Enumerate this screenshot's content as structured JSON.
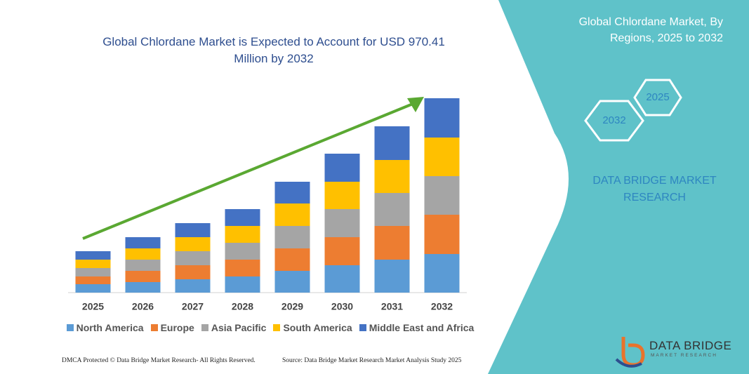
{
  "chart_data": {
    "type": "stacked-bar",
    "title": "Global Chlordane Market is Expected to Account for USD 970.41 Million by 2032",
    "categories": [
      "2025",
      "2026",
      "2027",
      "2028",
      "2029",
      "2030",
      "2031",
      "2032"
    ],
    "series": [
      {
        "name": "North America",
        "color": "#5b9bd5",
        "values": [
          12,
          15,
          19,
          23,
          31,
          39,
          47,
          55
        ]
      },
      {
        "name": "Europe",
        "color": "#ed7d31",
        "values": [
          11,
          16,
          20,
          24,
          32,
          40,
          48,
          56
        ]
      },
      {
        "name": "Asia Pacific",
        "color": "#a5a5a5",
        "values": [
          12,
          16,
          20,
          24,
          32,
          40,
          47,
          55
        ]
      },
      {
        "name": "South America",
        "color": "#ffc000",
        "values": [
          12,
          16,
          20,
          24,
          32,
          39,
          47,
          55
        ]
      },
      {
        "name": "Middle East and Africa",
        "color": "#4472c4",
        "values": [
          12,
          16,
          20,
          24,
          31,
          40,
          48,
          56
        ]
      }
    ]
  },
  "panel": {
    "title": "Global Chlordane Market, By Regions, 2025 to 2032",
    "hexagons": [
      "2025",
      "2032"
    ],
    "brand": "DATA BRIDGE MARKET RESEARCH"
  },
  "logo": {
    "name": "DATA BRIDGE",
    "tagline": "MARKET RESEARCH"
  },
  "footer": {
    "left": "DMCA Protected © Data Bridge Market Research- All Rights Reserved.",
    "right": "Source: Data Bridge Market Research Market Analysis Study 2025"
  }
}
